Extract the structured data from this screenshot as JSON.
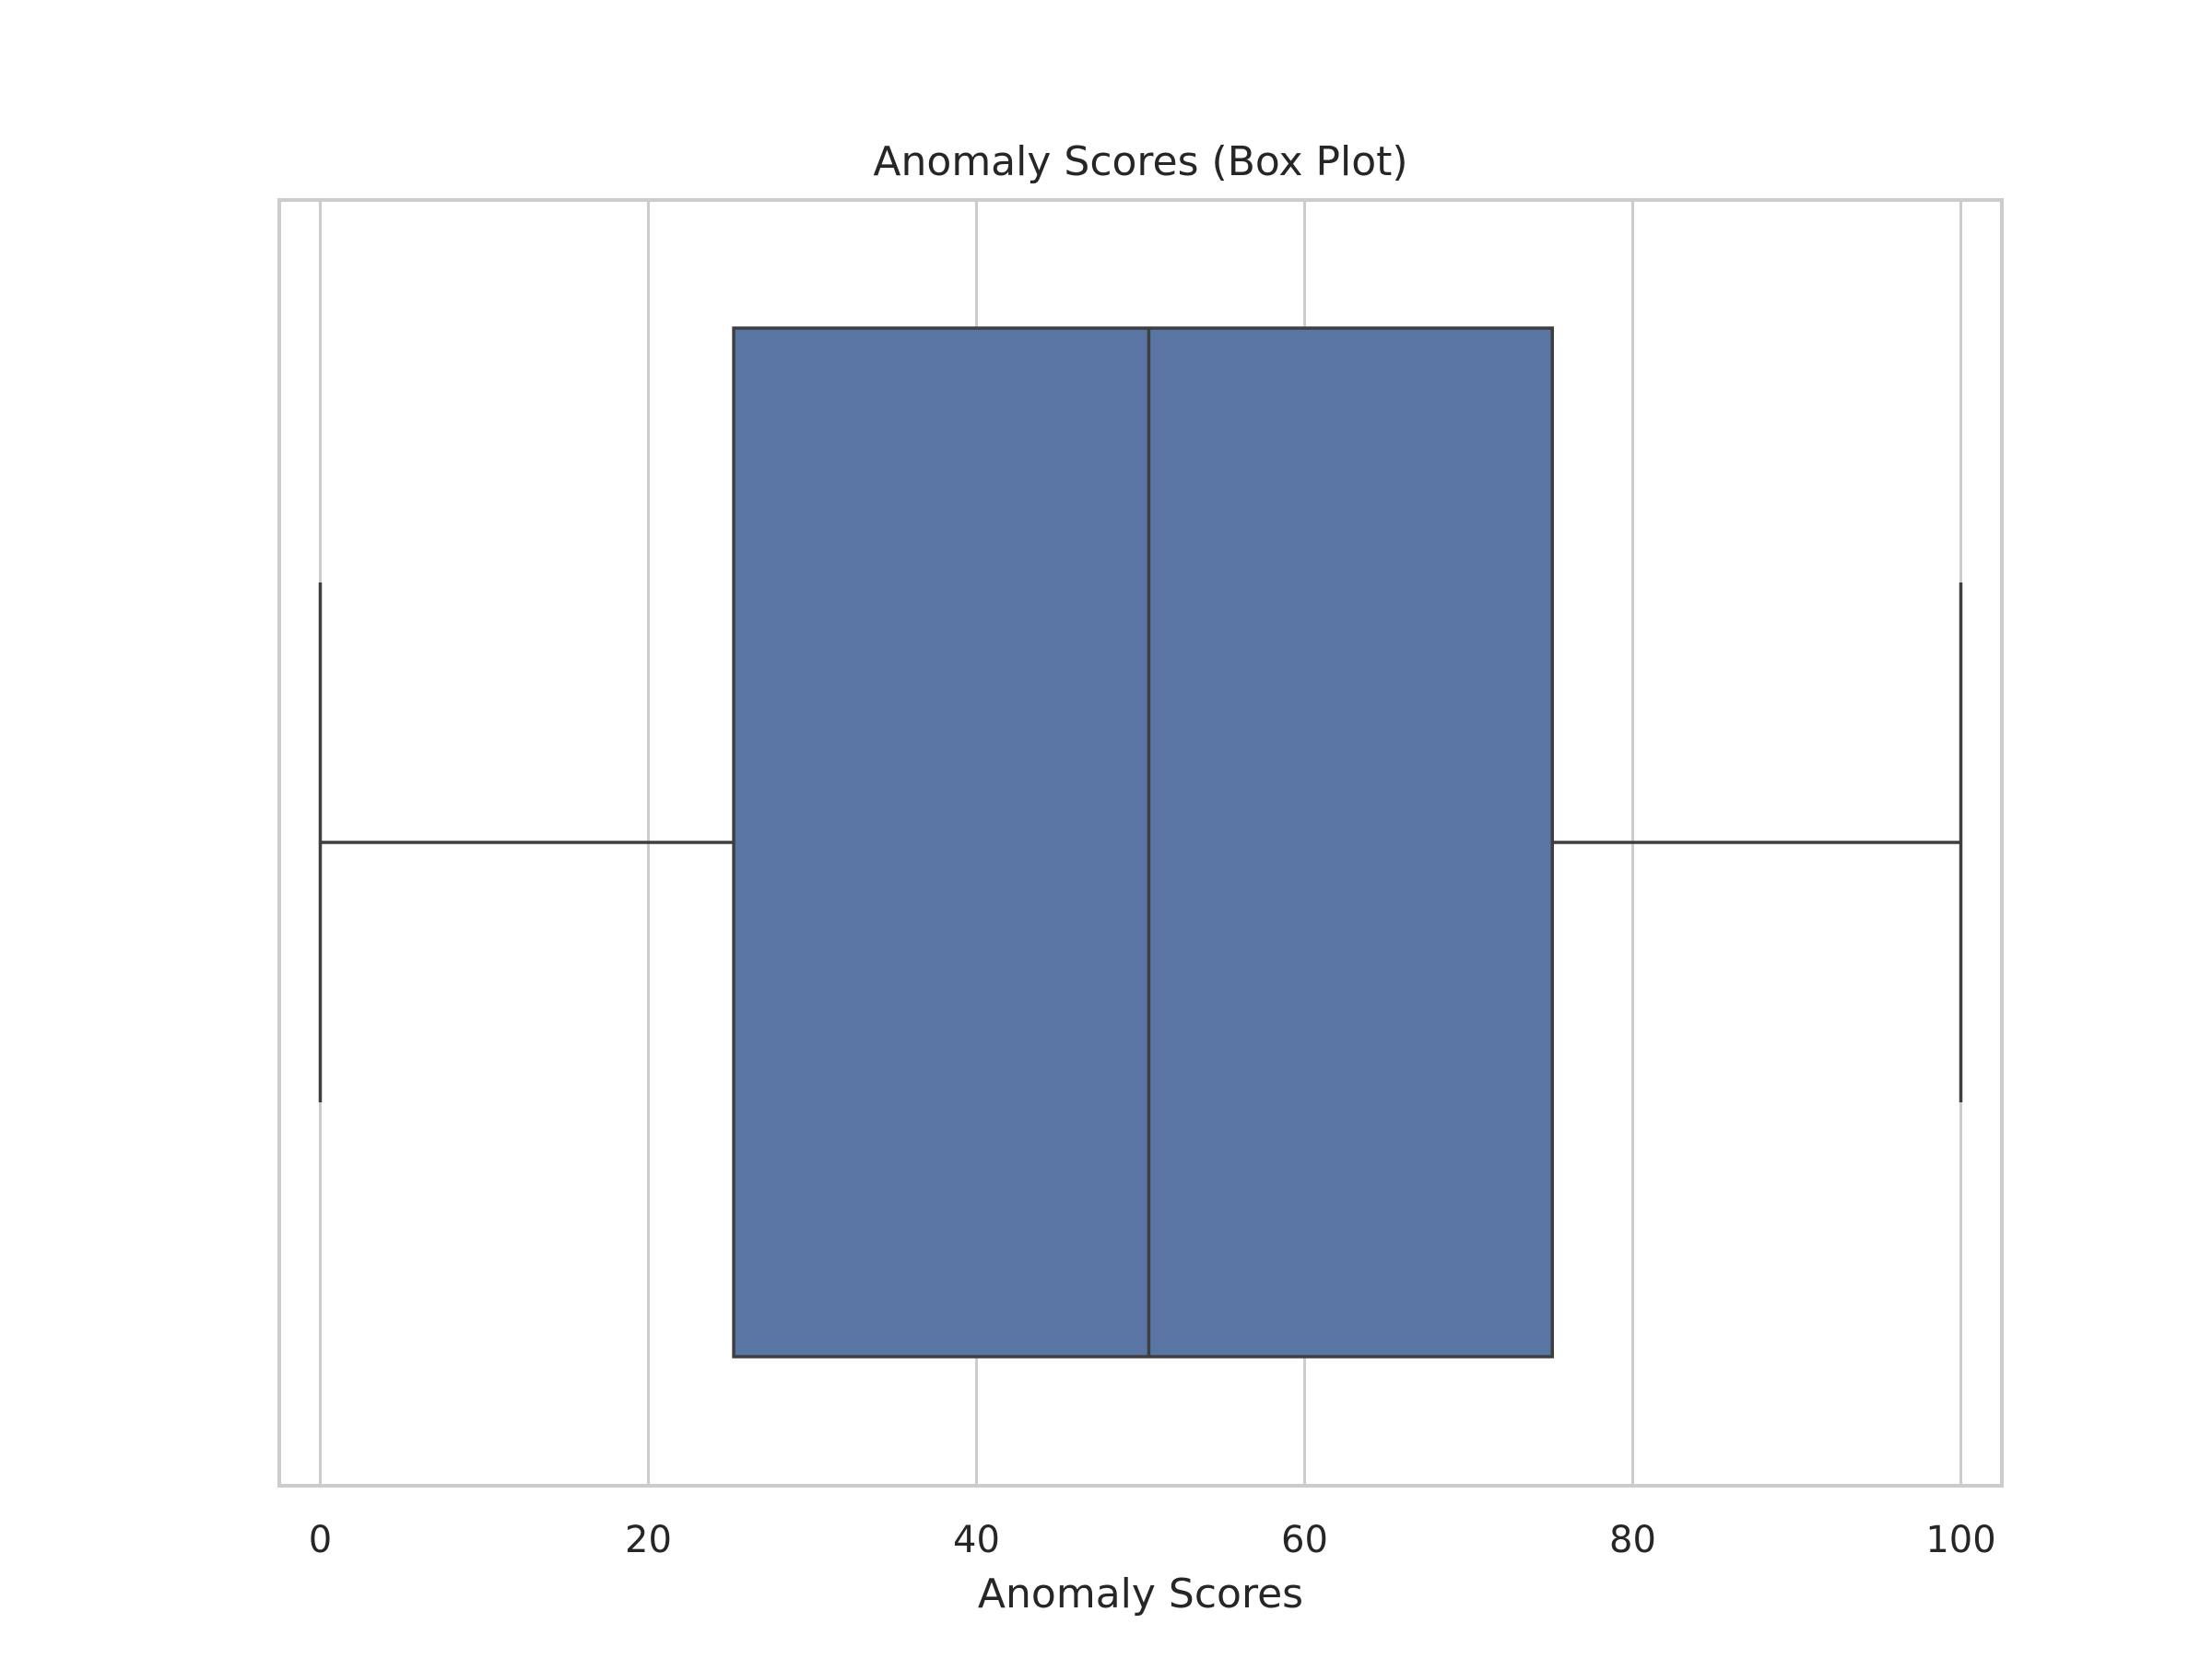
{
  "chart_data": {
    "type": "box",
    "title": "Anomaly Scores (Box Plot)",
    "xlabel": "Anomaly Scores",
    "ylabel": "",
    "xlim": [
      -2.5,
      102.5
    ],
    "xticks": [
      0,
      20,
      40,
      60,
      80,
      100
    ],
    "xtick_labels": [
      "0",
      "20",
      "40",
      "60",
      "80",
      "100"
    ],
    "grid": true,
    "orientation": "horizontal",
    "box": {
      "whisker_low": 0,
      "q1": 25.2,
      "median": 50.5,
      "q3": 75.1,
      "whisker_high": 100
    },
    "colors": {
      "box_fill": "#5975a4",
      "line": "#3f3f3f",
      "grid": "#cccccc"
    }
  }
}
